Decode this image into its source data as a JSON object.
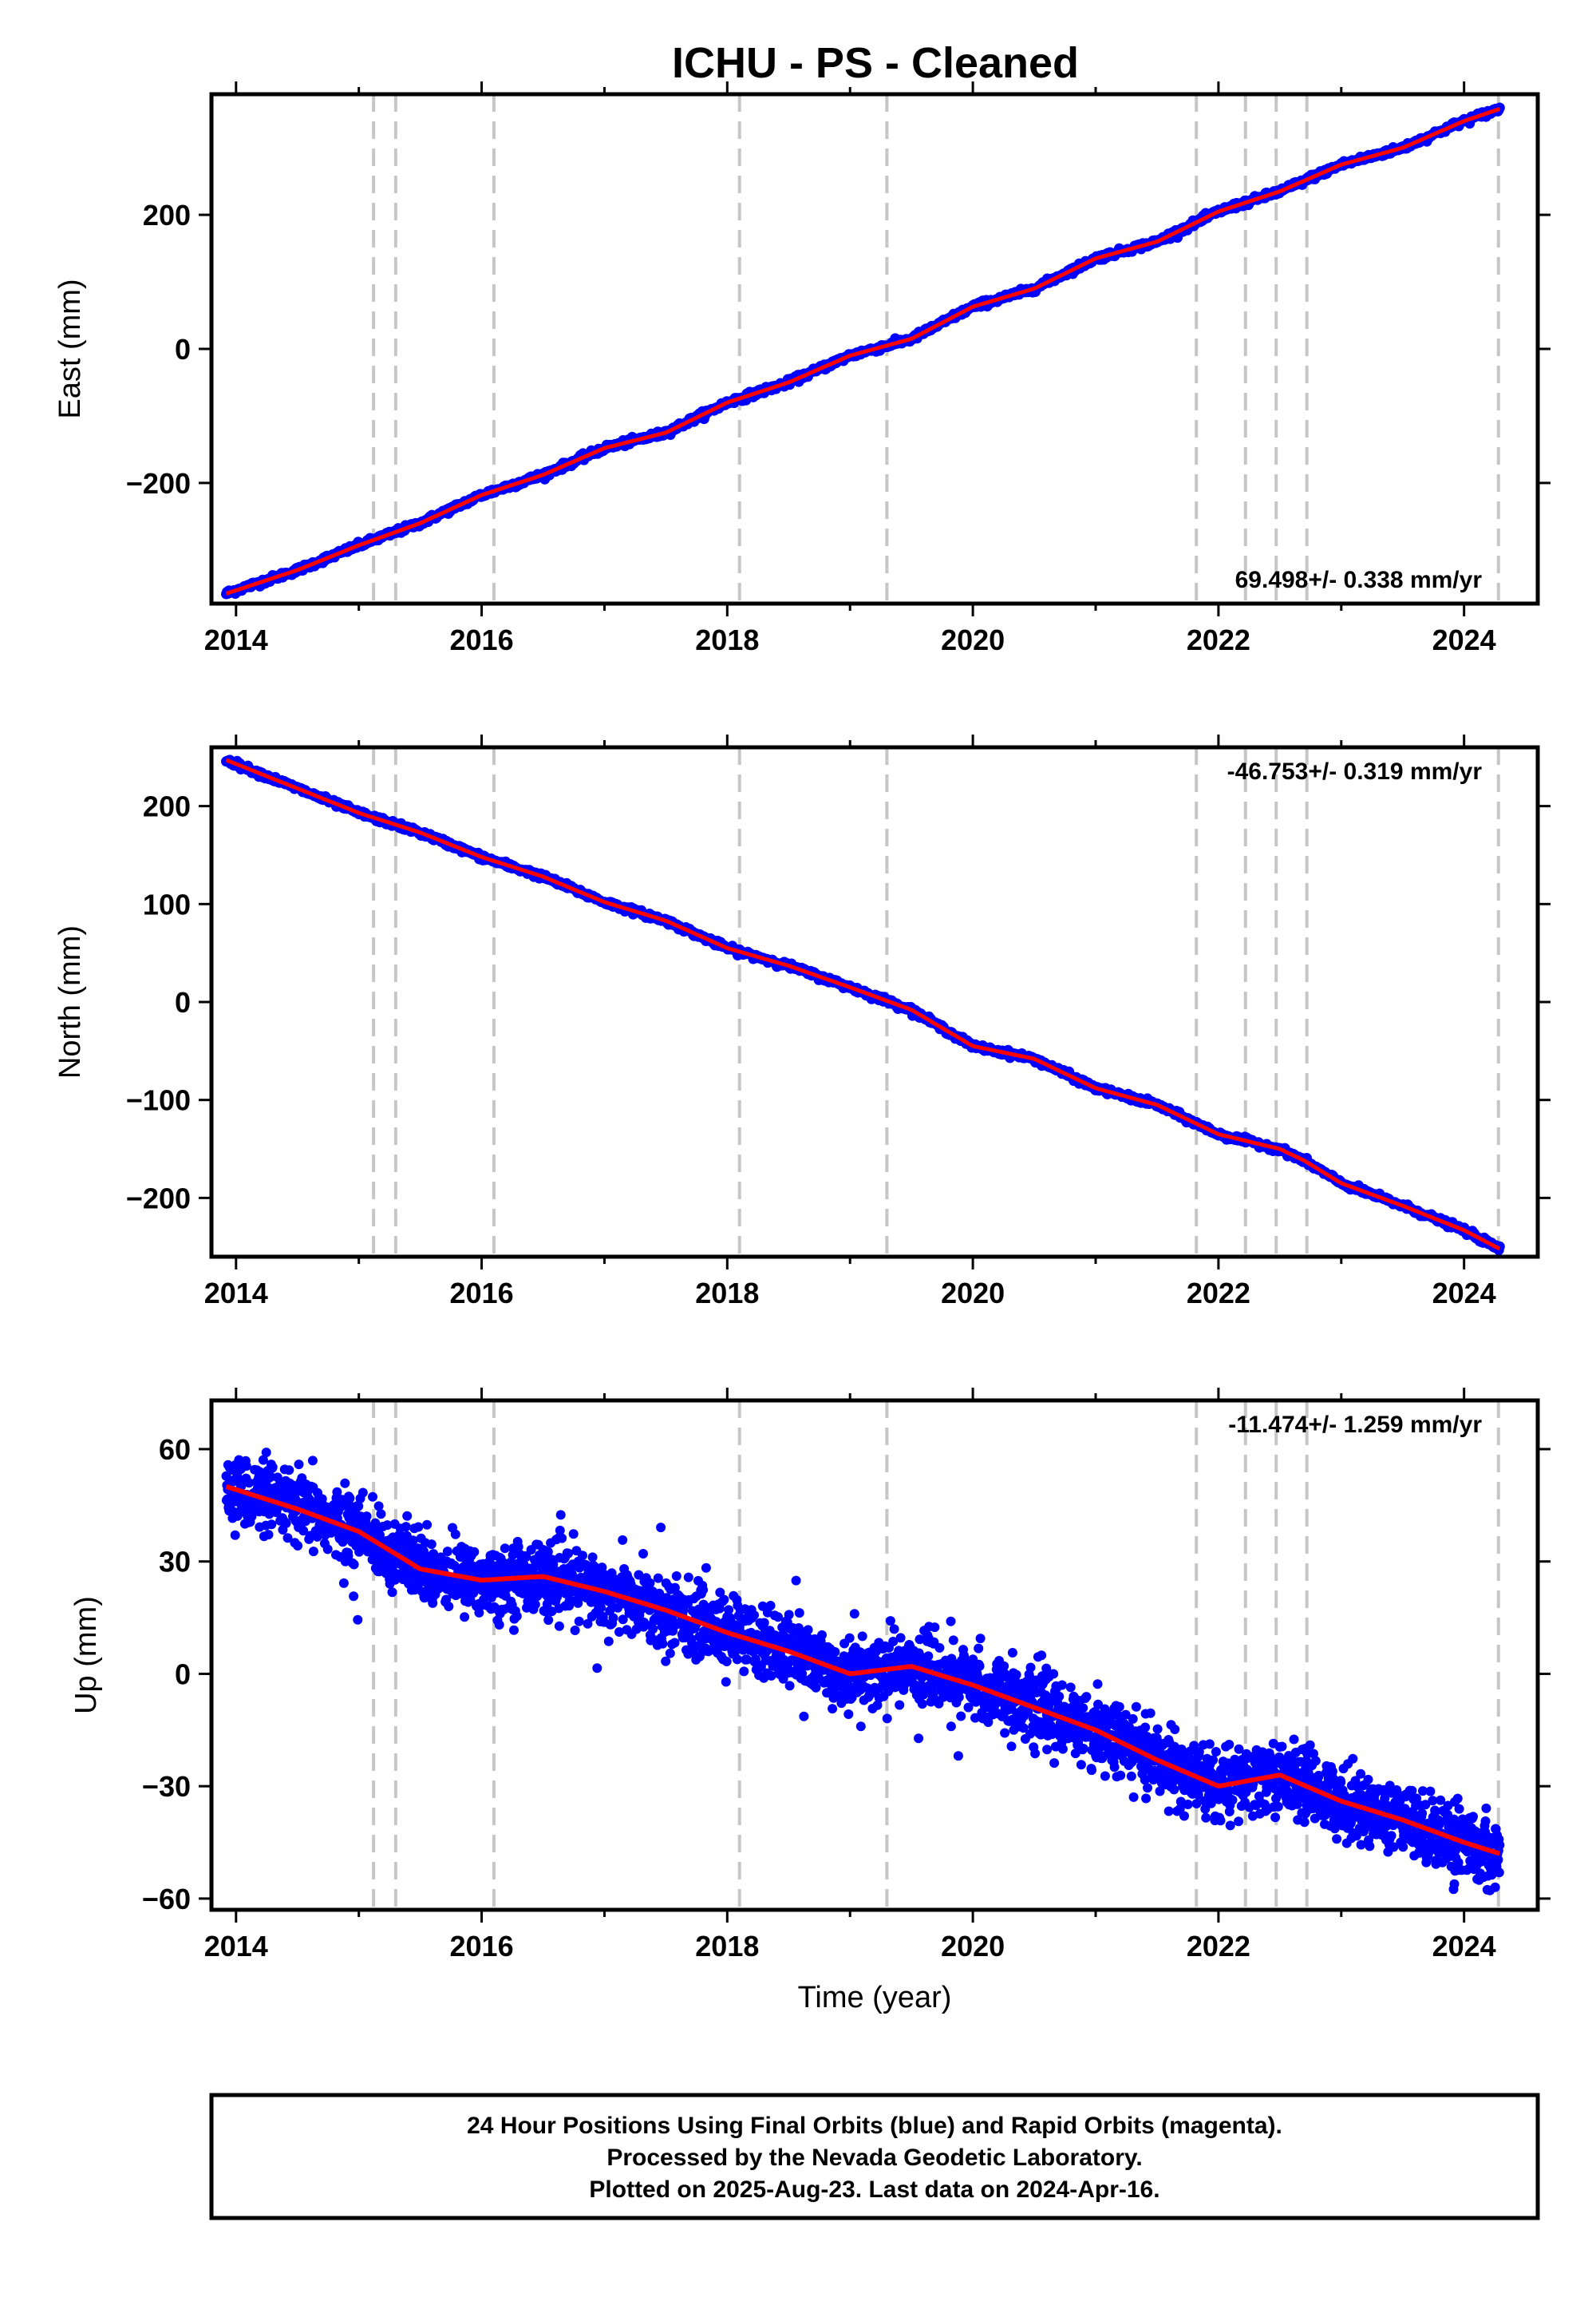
{
  "title": "ICHU  - PS - Cleaned",
  "chart_data": [
    {
      "type": "scatter",
      "ylabel": "East (mm)",
      "xlabel": "",
      "xlim": [
        2013.8,
        2024.6
      ],
      "ylim": [
        -380,
        380
      ],
      "xticks": [
        2014,
        2016,
        2018,
        2020,
        2022,
        2024
      ],
      "xtick_labels": [
        "2014",
        "2016",
        "2018",
        "2020",
        "2022",
        "2024"
      ],
      "yticks": [
        -200,
        0,
        200
      ],
      "ytick_labels": [
        "−200",
        "0",
        "200"
      ],
      "rate_label": "69.498+/- 0.338 mm/yr",
      "rate_position": "bottom-right",
      "point_color": "#0000ff",
      "fit_color": "#ff0000",
      "x": [
        2013.92,
        2014.5,
        2015.0,
        2015.5,
        2016.0,
        2016.5,
        2017.0,
        2017.5,
        2018.0,
        2018.5,
        2019.0,
        2019.5,
        2020.0,
        2020.5,
        2021.0,
        2021.5,
        2022.0,
        2022.5,
        2023.0,
        2023.5,
        2024.0,
        2024.29
      ],
      "y": [
        -365,
        -330,
        -293,
        -260,
        -218,
        -188,
        -148,
        -125,
        -80,
        -50,
        -10,
        15,
        63,
        90,
        135,
        160,
        205,
        235,
        275,
        300,
        340,
        358
      ],
      "series": [
        {
          "x": [
            2013.92,
            2024.29
          ],
          "y": [
            -365,
            358
          ]
        }
      ]
    },
    {
      "type": "scatter",
      "ylabel": "North (mm)",
      "xlabel": "",
      "xlim": [
        2013.8,
        2024.6
      ],
      "ylim": [
        -260,
        260
      ],
      "xticks": [
        2014,
        2016,
        2018,
        2020,
        2022,
        2024
      ],
      "xtick_labels": [
        "2014",
        "2016",
        "2018",
        "2020",
        "2022",
        "2024"
      ],
      "yticks": [
        -200,
        -100,
        0,
        100,
        200
      ],
      "ytick_labels": [
        "−200",
        "−100",
        "0",
        "100",
        "200"
      ],
      "rate_label": "-46.753+/- 0.319 mm/yr",
      "rate_position": "top-right",
      "point_color": "#0000ff",
      "fit_color": "#ff0000",
      "x": [
        2013.92,
        2014.5,
        2015.0,
        2015.5,
        2016.0,
        2016.5,
        2017.0,
        2017.5,
        2018.0,
        2018.5,
        2019.0,
        2019.5,
        2020.0,
        2020.5,
        2021.0,
        2021.5,
        2022.0,
        2022.5,
        2022.7,
        2023.0,
        2023.5,
        2024.0,
        2024.29
      ],
      "y": [
        247,
        218,
        193,
        173,
        148,
        128,
        102,
        83,
        55,
        37,
        15,
        -8,
        -45,
        -58,
        -88,
        -105,
        -135,
        -150,
        -162,
        -185,
        -208,
        -233,
        -252
      ],
      "series": [
        {
          "x": [
            2013.92,
            2024.29
          ],
          "y": [
            247,
            -252
          ]
        }
      ]
    },
    {
      "type": "scatter",
      "ylabel": "Up (mm)",
      "xlabel": "Time (year)",
      "xlim": [
        2013.8,
        2024.6
      ],
      "ylim": [
        -63,
        73
      ],
      "xticks": [
        2014,
        2016,
        2018,
        2020,
        2022,
        2024
      ],
      "xtick_labels": [
        "2014",
        "2016",
        "2018",
        "2020",
        "2022",
        "2024"
      ],
      "yticks": [
        -60,
        -30,
        0,
        30,
        60
      ],
      "ytick_labels": [
        "−60",
        "−30",
        "0",
        "30",
        "60"
      ],
      "rate_label": "-11.474+/- 1.259 mm/yr",
      "rate_position": "top-right",
      "point_color": "#0000ff",
      "fit_color": "#ff0000",
      "x": [
        2013.92,
        2014.5,
        2015.0,
        2015.5,
        2016.0,
        2016.5,
        2017.0,
        2017.5,
        2018.0,
        2018.5,
        2019.0,
        2019.5,
        2020.0,
        2020.5,
        2021.0,
        2021.5,
        2022.0,
        2022.5,
        2023.0,
        2023.5,
        2024.0,
        2024.29
      ],
      "y": [
        50,
        44,
        38,
        28,
        25,
        26,
        22,
        17,
        11,
        6,
        0,
        2,
        -3,
        -9,
        -15,
        -23,
        -30,
        -27,
        -34,
        -39,
        -45,
        -48
      ],
      "series": [
        {
          "x": [
            2013.92,
            2024.29
          ],
          "y": [
            50,
            -48
          ]
        }
      ]
    }
  ],
  "offset_epochs": [
    2015.12,
    2015.3,
    2016.1,
    2018.1,
    2019.3,
    2021.82,
    2022.22,
    2022.47,
    2022.72,
    2024.28
  ],
  "footer": {
    "line1": "24 Hour Positions Using Final Orbits (blue) and Rapid Orbits (magenta).",
    "line2": "Processed by the Nevada Geodetic Laboratory.",
    "line3": "Plotted on 2025-Aug-23. Last data on 2024-Apr-16."
  }
}
